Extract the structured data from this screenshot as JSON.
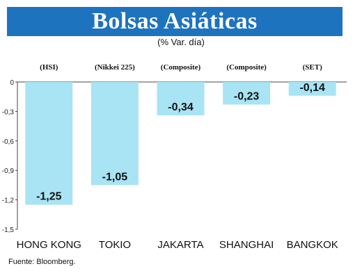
{
  "header": {
    "title": "Bolsas Asiáticas",
    "subtitle": "(% Var. día)"
  },
  "footer": {
    "source": "Fuente: Bloomberg."
  },
  "colors": {
    "title_bg": "#1e73bf",
    "bar": "#a8e4f4"
  },
  "chart_data": {
    "type": "bar",
    "title": "Bolsas Asiáticas",
    "subtitle": "(% Var. día)",
    "categories": [
      "HONG KONG",
      "TOKIO",
      "JAKARTA",
      "SHANGHAI",
      "BANGKOK"
    ],
    "index_names": [
      "(HSI)",
      "(Nikkei 225)",
      "(Composite)",
      "(Composite)",
      "(SET)"
    ],
    "values": [
      -1.25,
      -1.05,
      -0.34,
      -0.23,
      -0.14
    ],
    "value_labels": [
      "-1,25",
      "-1,05",
      "-0,34",
      "-0,23",
      "-0,14"
    ],
    "yticks": [
      0,
      -0.3,
      -0.6,
      -0.9,
      -1.2,
      -1.5
    ],
    "ytick_labels": [
      "0",
      "-0,3",
      "-0,6",
      "-0,9",
      "-1,2",
      "-1,5"
    ],
    "ylim": [
      -1.5,
      0
    ],
    "xlabel": "",
    "ylabel": "",
    "grid": false,
    "legend": "none"
  }
}
